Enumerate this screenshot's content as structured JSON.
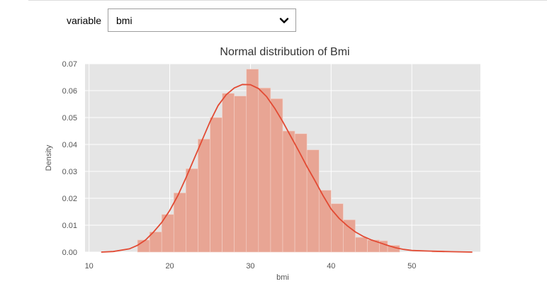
{
  "widget": {
    "label": "variable",
    "selected": "bmi"
  },
  "icons": {
    "dropdown": "chevron-down-icon"
  },
  "colors": {
    "plot_bg": "#e5e5e5",
    "grid": "#ffffff",
    "bar": "#e8a594",
    "kde": "#e24a33",
    "text": "#555555"
  },
  "chart_data": {
    "type": "bar",
    "title": "Normal distribution of  Bmi",
    "xlabel": "bmi",
    "ylabel": "Density",
    "xlim": [
      9.5,
      58.5
    ],
    "ylim": [
      0,
      0.07
    ],
    "xticks": [
      10,
      20,
      30,
      40,
      50
    ],
    "yticks": [
      0.0,
      0.01,
      0.02,
      0.03,
      0.04,
      0.05,
      0.06,
      0.07
    ],
    "ytick_labels": [
      "0.00",
      "0.01",
      "0.02",
      "0.03",
      "0.04",
      "0.05",
      "0.06",
      "0.07"
    ],
    "grid": true,
    "bins": [
      {
        "x0": 16.0,
        "x1": 17.5,
        "density": 0.0045
      },
      {
        "x0": 17.5,
        "x1": 19.0,
        "density": 0.0075
      },
      {
        "x0": 19.0,
        "x1": 20.5,
        "density": 0.014
      },
      {
        "x0": 20.5,
        "x1": 22.0,
        "density": 0.022
      },
      {
        "x0": 22.0,
        "x1": 23.5,
        "density": 0.031
      },
      {
        "x0": 23.5,
        "x1": 25.0,
        "density": 0.042
      },
      {
        "x0": 25.0,
        "x1": 26.5,
        "density": 0.05
      },
      {
        "x0": 26.5,
        "x1": 28.0,
        "density": 0.059
      },
      {
        "x0": 28.0,
        "x1": 29.5,
        "density": 0.058
      },
      {
        "x0": 29.5,
        "x1": 31.0,
        "density": 0.068
      },
      {
        "x0": 31.0,
        "x1": 32.5,
        "density": 0.061
      },
      {
        "x0": 32.5,
        "x1": 34.0,
        "density": 0.057
      },
      {
        "x0": 34.0,
        "x1": 35.5,
        "density": 0.045
      },
      {
        "x0": 35.5,
        "x1": 37.0,
        "density": 0.044
      },
      {
        "x0": 37.0,
        "x1": 38.5,
        "density": 0.038
      },
      {
        "x0": 38.5,
        "x1": 40.0,
        "density": 0.023
      },
      {
        "x0": 40.0,
        "x1": 41.5,
        "density": 0.018
      },
      {
        "x0": 41.5,
        "x1": 43.0,
        "density": 0.012
      },
      {
        "x0": 43.0,
        "x1": 44.5,
        "density": 0.0055
      },
      {
        "x0": 44.5,
        "x1": 46.0,
        "density": 0.0045
      },
      {
        "x0": 46.0,
        "x1": 47.0,
        "density": 0.0042
      },
      {
        "x0": 47.0,
        "x1": 48.5,
        "density": 0.0025
      },
      {
        "x0": 52.5,
        "x1": 54.0,
        "density": 0.0005
      }
    ],
    "kde": {
      "x": [
        11.5,
        13,
        15,
        16,
        17,
        18,
        19,
        20,
        21,
        22,
        23,
        24,
        25,
        26,
        27,
        28,
        29,
        30,
        31,
        32,
        33,
        34,
        35,
        36,
        37,
        38,
        39,
        40,
        41,
        42,
        43,
        44,
        45,
        46,
        47,
        48,
        49,
        50,
        52,
        54,
        57.5
      ],
      "y": [
        0.0,
        0.0002,
        0.0012,
        0.0025,
        0.0045,
        0.0075,
        0.011,
        0.0155,
        0.021,
        0.0275,
        0.0345,
        0.0415,
        0.0485,
        0.0545,
        0.0585,
        0.061,
        0.0623,
        0.0622,
        0.0608,
        0.0578,
        0.0535,
        0.0485,
        0.043,
        0.0375,
        0.0318,
        0.0265,
        0.021,
        0.016,
        0.0125,
        0.0098,
        0.0075,
        0.0058,
        0.0045,
        0.0035,
        0.0025,
        0.0016,
        0.001,
        0.0006,
        0.0004,
        0.0002,
        0.0
      ]
    }
  }
}
